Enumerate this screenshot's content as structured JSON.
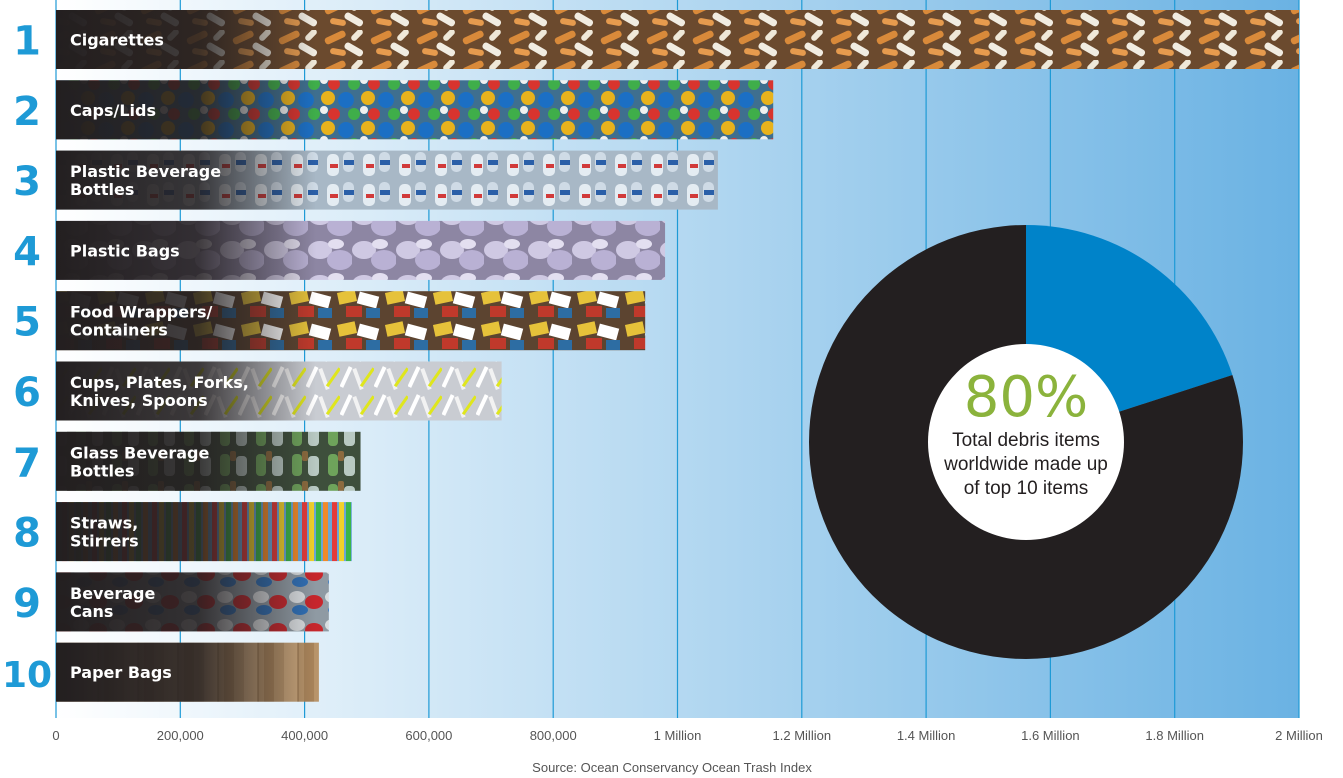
{
  "chart_data": {
    "type": "bar",
    "orientation": "horizontal",
    "categories": [
      "Cigarettes",
      "Caps/Lids",
      "Plastic Beverage Bottles",
      "Plastic Bags",
      "Food Wrappers/ Containers",
      "Cups, Plates, Forks, Knives, Spoons",
      "Glass Beverage Bottles",
      "Straws, Stirrers",
      "Beverage Cans",
      "Paper Bags"
    ],
    "label_lines": [
      [
        "Cigarettes"
      ],
      [
        "Caps/Lids"
      ],
      [
        "Plastic Beverage",
        "Bottles"
      ],
      [
        "Plastic Bags"
      ],
      [
        "Food Wrappers/",
        "Containers"
      ],
      [
        "Cups, Plates, Forks,",
        "Knives, Spoons"
      ],
      [
        "Glass Beverage",
        "Bottles"
      ],
      [
        "Straws,",
        "Stirrers"
      ],
      [
        "Beverage",
        "Cans"
      ],
      [
        "Paper Bags"
      ]
    ],
    "ranks": [
      "1",
      "2",
      "3",
      "4",
      "5",
      "6",
      "7",
      "8",
      "9",
      "10"
    ],
    "values": [
      2000000,
      1154000,
      1065000,
      980000,
      948000,
      717000,
      490000,
      476000,
      439000,
      423000
    ],
    "xlim": [
      0,
      2000000
    ],
    "x_ticks": [
      0,
      200000,
      400000,
      600000,
      800000,
      1000000,
      1200000,
      1400000,
      1600000,
      1800000,
      2000000
    ],
    "x_tick_labels": [
      "0",
      "200,000",
      "400,000",
      "600,000",
      "800,000",
      "1 Million",
      "1.2 Million",
      "1.4 Million",
      "1.6 Million",
      "1.8 Million",
      "2 Million"
    ],
    "grid": true,
    "inset_pie": {
      "slices": [
        {
          "share": 0.8,
          "color": "#231f20"
        },
        {
          "share": 0.2,
          "color": "#0083c9"
        }
      ],
      "headline": "80%",
      "text_lines": [
        "Total debris items",
        "worldwide made up",
        "of top 10 items"
      ]
    },
    "source": "Source:  Ocean Conservancy Ocean Trash Index"
  },
  "colors": {
    "rank": "#1e9ad6",
    "grid": "#1e9ad6",
    "background_start": "#ffffff",
    "background_end": "#6ab2e3",
    "label_panel": "#231f20",
    "pie_dark": "#231f20",
    "pie_accent": "#0083c9",
    "headline": "#8bb33c",
    "source_text": "#555555"
  }
}
